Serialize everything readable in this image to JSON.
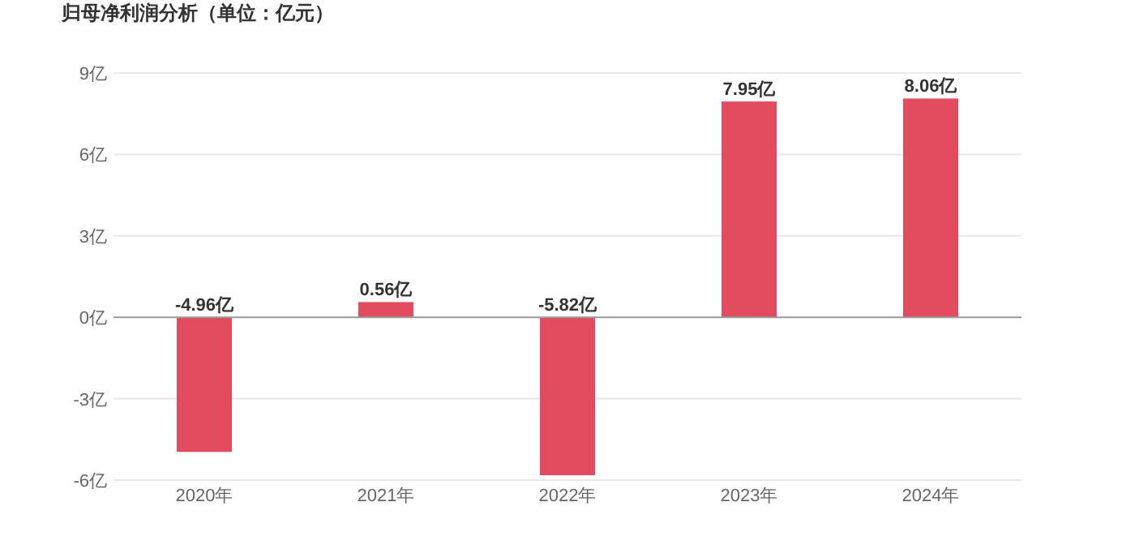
{
  "chart_data": {
    "type": "bar",
    "title": "归母净利润分析（单位：亿元）",
    "categories": [
      "2020年",
      "2021年",
      "2022年",
      "2023年",
      "2024年"
    ],
    "values": [
      -4.96,
      0.56,
      -5.82,
      7.95,
      8.06
    ],
    "value_labels": [
      "-4.96亿",
      "0.56亿",
      "-5.82亿",
      "7.95亿",
      "8.06亿"
    ],
    "color": "#e34b5f",
    "ylim": [
      -6,
      9
    ],
    "yticks": [
      {
        "value": -6,
        "label": "-6亿"
      },
      {
        "value": -3,
        "label": "-3亿"
      },
      {
        "value": 0,
        "label": "0亿"
      },
      {
        "value": 3,
        "label": "3亿"
      },
      {
        "value": 6,
        "label": "6亿"
      },
      {
        "value": 9,
        "label": "9亿"
      }
    ],
    "grid": "y"
  }
}
